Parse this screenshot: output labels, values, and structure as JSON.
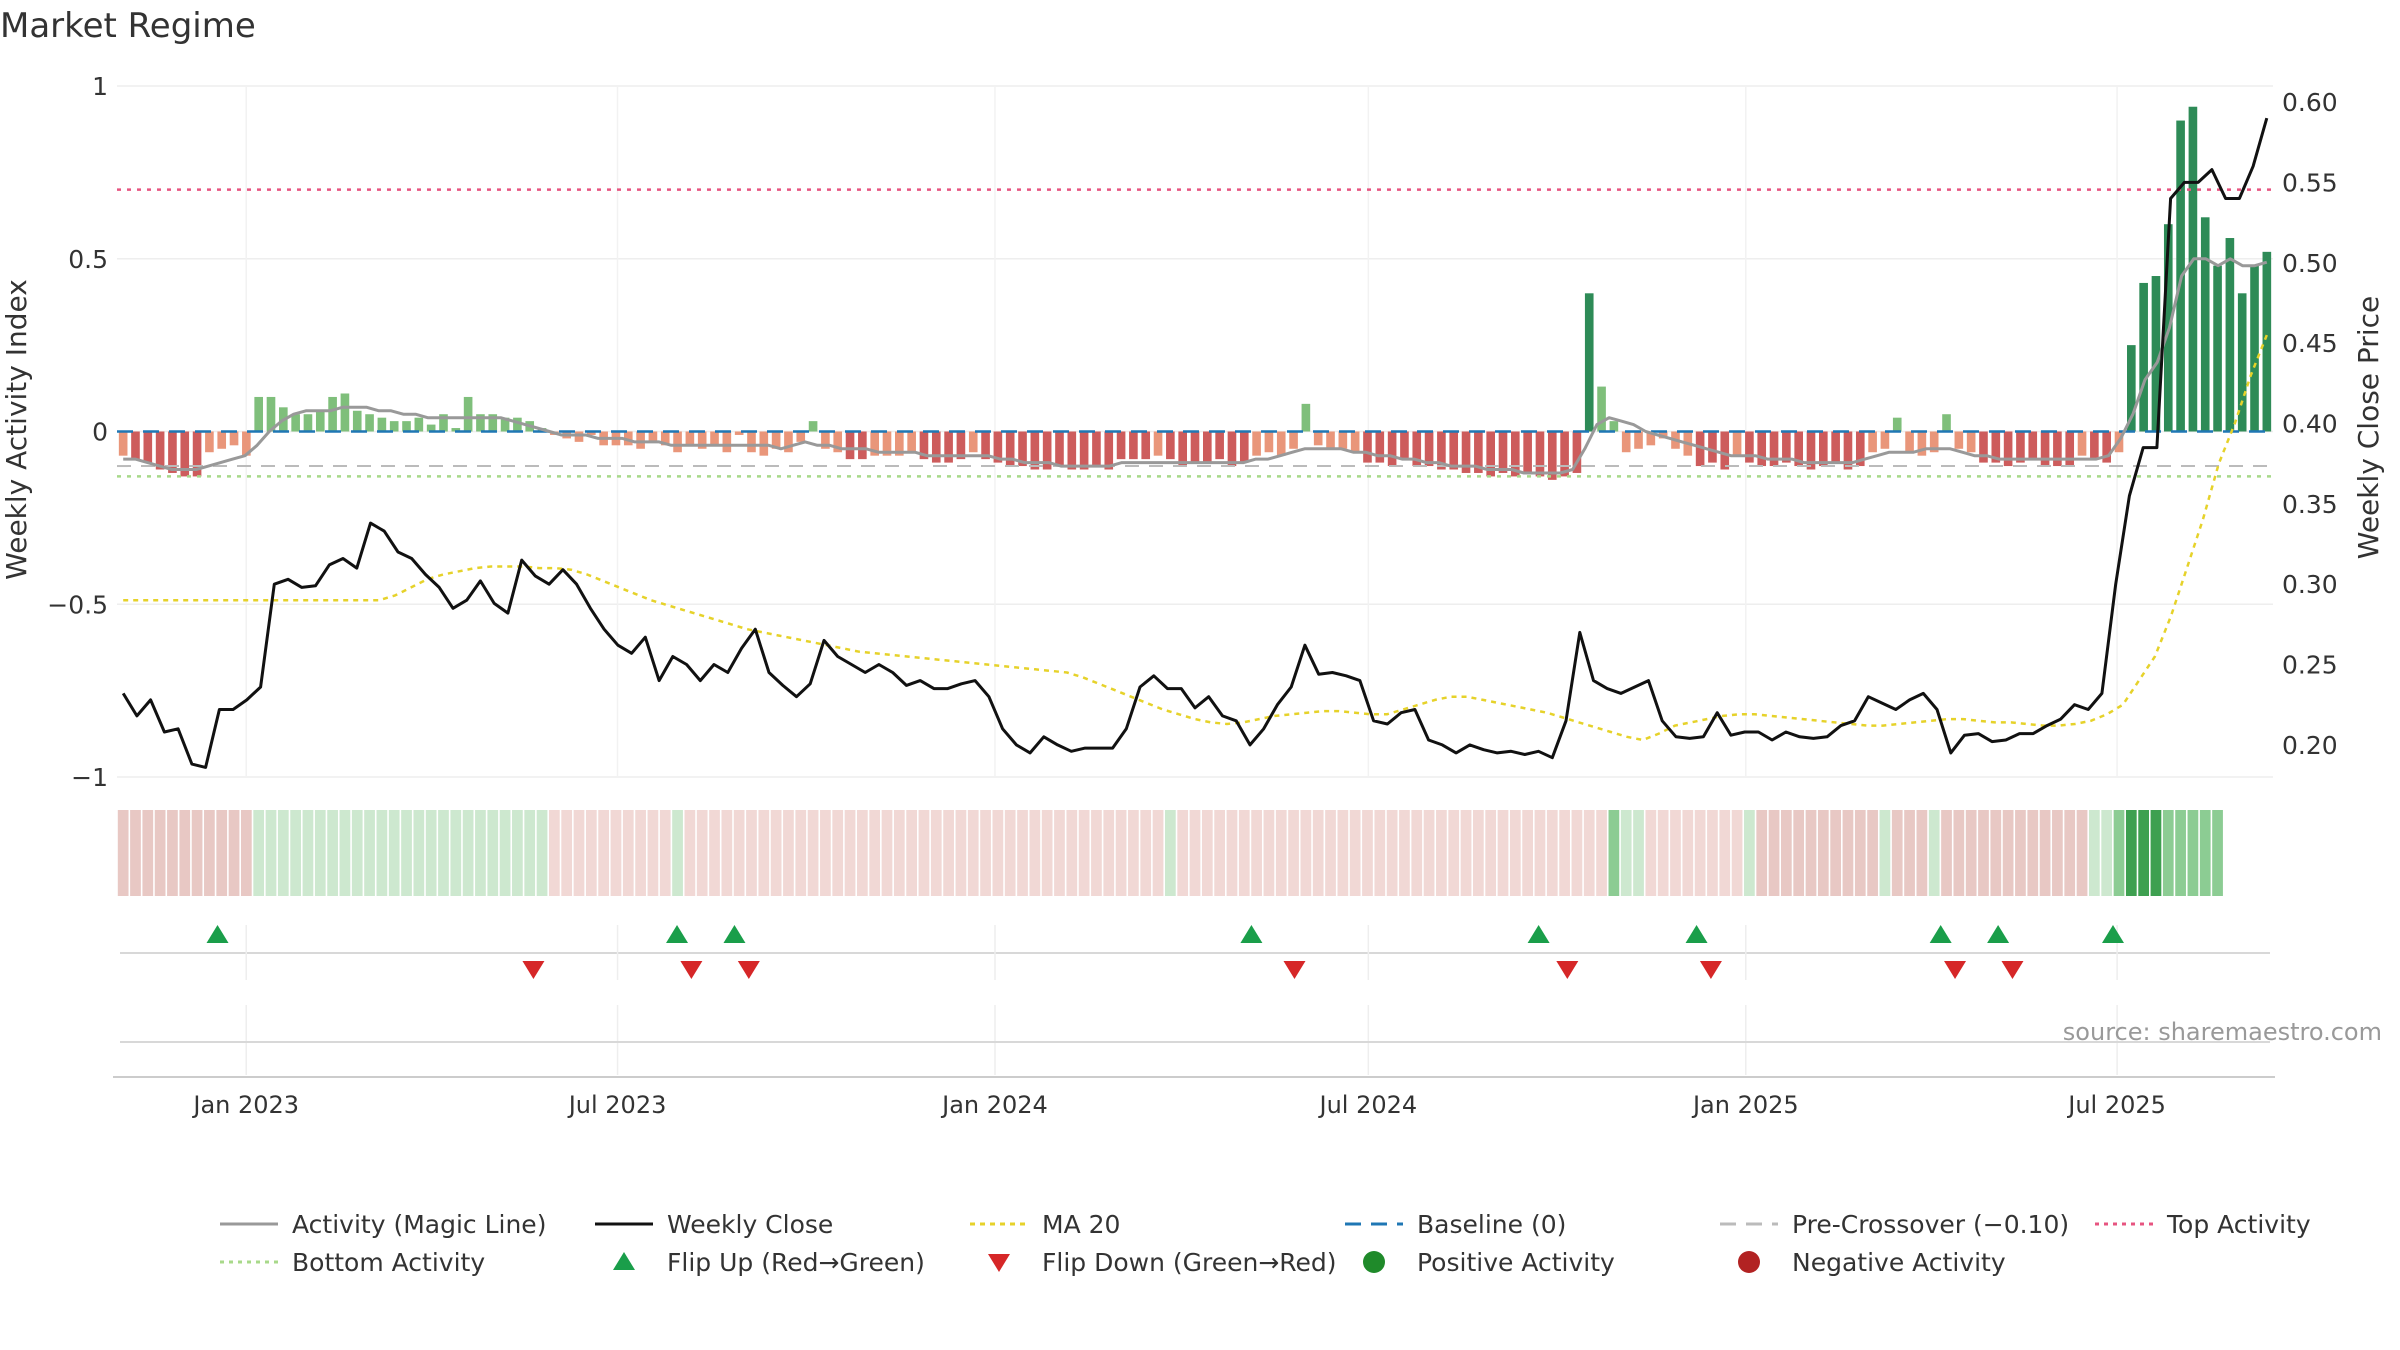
{
  "chart_data": {
    "type": "bar",
    "title": "Market Regime",
    "source": "source: sharemaestro.com",
    "y_left": {
      "label": "Weekly Activity Index",
      "lim": [
        -1,
        1
      ],
      "ticks": [
        1,
        0.5,
        0,
        -0.5,
        -1
      ],
      "tick_labels": [
        "1",
        "0.5",
        "0",
        "−0.5",
        "−1"
      ]
    },
    "y_right": {
      "label": "Weekly Close Price",
      "lim": [
        0.18,
        0.61
      ],
      "ticks": [
        0.6,
        0.55,
        0.5,
        0.45,
        0.4,
        0.35,
        0.3,
        0.25,
        0.2
      ],
      "tick_labels": [
        "0.60",
        "0.55",
        "0.50",
        "0.45",
        "0.40",
        "0.35",
        "0.30",
        "0.25",
        "0.20"
      ]
    },
    "x_axis": {
      "start": "2022-10-30",
      "end": "2025-09-15",
      "ticks": [
        {
          "label": "Jan 2023",
          "date": "2023-01-01"
        },
        {
          "label": "Jul 2023",
          "date": "2023-07-01"
        },
        {
          "label": "Jan 2024",
          "date": "2024-01-01"
        },
        {
          "label": "Jul 2024",
          "date": "2024-07-01"
        },
        {
          "label": "Jan 2025",
          "date": "2025-01-01"
        },
        {
          "label": "Jul 2025",
          "date": "2025-07-01"
        }
      ]
    },
    "reference_lines": {
      "top_activity": 0.7,
      "bottom_activity": -0.13,
      "baseline": 0,
      "pre_crossover": -0.1
    },
    "activity_bars": [
      -0.07,
      -0.08,
      -0.09,
      -0.11,
      -0.12,
      -0.13,
      -0.13,
      -0.06,
      -0.05,
      -0.04,
      -0.07,
      0.1,
      0.1,
      0.07,
      0.05,
      0.05,
      0.06,
      0.1,
      0.11,
      0.06,
      0.05,
      0.04,
      0.03,
      0.03,
      0.04,
      0.02,
      0.05,
      0.01,
      0.1,
      0.05,
      0.05,
      0.04,
      0.04,
      0.03,
      0.01,
      -0.01,
      -0.02,
      -0.03,
      -0.01,
      -0.04,
      -0.04,
      -0.04,
      -0.05,
      -0.03,
      -0.04,
      -0.06,
      -0.04,
      -0.05,
      -0.04,
      -0.06,
      -0.01,
      -0.06,
      -0.07,
      -0.05,
      -0.06,
      -0.03,
      0.03,
      -0.05,
      -0.06,
      -0.08,
      -0.08,
      -0.07,
      -0.07,
      -0.07,
      -0.06,
      -0.08,
      -0.09,
      -0.09,
      -0.08,
      -0.06,
      -0.08,
      -0.09,
      -0.1,
      -0.1,
      -0.11,
      -0.11,
      -0.1,
      -0.11,
      -0.11,
      -0.1,
      -0.11,
      -0.08,
      -0.08,
      -0.08,
      -0.07,
      -0.08,
      -0.1,
      -0.09,
      -0.09,
      -0.08,
      -0.1,
      -0.09,
      -0.07,
      -0.06,
      -0.07,
      -0.05,
      0.08,
      -0.04,
      -0.05,
      -0.05,
      -0.06,
      -0.09,
      -0.09,
      -0.1,
      -0.08,
      -0.1,
      -0.1,
      -0.11,
      -0.11,
      -0.12,
      -0.12,
      -0.13,
      -0.12,
      -0.13,
      -0.12,
      -0.13,
      -0.14,
      -0.13,
      -0.12,
      0.4,
      0.13,
      0.03,
      -0.06,
      -0.05,
      -0.04,
      -0.02,
      -0.05,
      -0.07,
      -0.1,
      -0.09,
      -0.11,
      -0.07,
      -0.09,
      -0.1,
      -0.1,
      -0.09,
      -0.1,
      -0.11,
      -0.1,
      -0.09,
      -0.11,
      -0.1,
      -0.06,
      -0.05,
      0.04,
      -0.06,
      -0.07,
      -0.06,
      0.05,
      -0.05,
      -0.06,
      -0.09,
      -0.09,
      -0.1,
      -0.09,
      -0.08,
      -0.1,
      -0.1,
      -0.1,
      -0.07,
      -0.08,
      -0.09,
      -0.06,
      0.25,
      0.43,
      0.45,
      0.6,
      0.9,
      0.94,
      0.62,
      0.48,
      0.56,
      0.4,
      0.48,
      0.52
    ],
    "activity_magic_line": [
      -0.08,
      -0.08,
      -0.09,
      -0.1,
      -0.11,
      -0.11,
      -0.11,
      -0.1,
      -0.09,
      -0.08,
      -0.07,
      -0.04,
      0.0,
      0.03,
      0.05,
      0.06,
      0.06,
      0.06,
      0.07,
      0.07,
      0.07,
      0.06,
      0.06,
      0.05,
      0.05,
      0.04,
      0.04,
      0.04,
      0.04,
      0.04,
      0.04,
      0.04,
      0.03,
      0.02,
      0.01,
      0.0,
      -0.01,
      -0.01,
      -0.01,
      -0.02,
      -0.02,
      -0.02,
      -0.03,
      -0.03,
      -0.03,
      -0.04,
      -0.04,
      -0.04,
      -0.04,
      -0.04,
      -0.04,
      -0.04,
      -0.04,
      -0.04,
      -0.05,
      -0.04,
      -0.03,
      -0.04,
      -0.04,
      -0.05,
      -0.05,
      -0.05,
      -0.06,
      -0.06,
      -0.06,
      -0.06,
      -0.07,
      -0.07,
      -0.07,
      -0.07,
      -0.07,
      -0.07,
      -0.08,
      -0.08,
      -0.09,
      -0.09,
      -0.09,
      -0.1,
      -0.1,
      -0.1,
      -0.1,
      -0.1,
      -0.09,
      -0.09,
      -0.09,
      -0.09,
      -0.09,
      -0.09,
      -0.09,
      -0.09,
      -0.09,
      -0.09,
      -0.09,
      -0.08,
      -0.08,
      -0.07,
      -0.06,
      -0.05,
      -0.05,
      -0.05,
      -0.05,
      -0.06,
      -0.06,
      -0.07,
      -0.07,
      -0.08,
      -0.08,
      -0.09,
      -0.09,
      -0.1,
      -0.1,
      -0.1,
      -0.11,
      -0.11,
      -0.11,
      -0.12,
      -0.12,
      -0.12,
      -0.12,
      -0.11,
      -0.05,
      0.02,
      0.04,
      0.03,
      0.02,
      0.0,
      -0.01,
      -0.02,
      -0.03,
      -0.04,
      -0.05,
      -0.06,
      -0.07,
      -0.07,
      -0.07,
      -0.08,
      -0.08,
      -0.08,
      -0.09,
      -0.09,
      -0.09,
      -0.09,
      -0.09,
      -0.08,
      -0.07,
      -0.06,
      -0.06,
      -0.06,
      -0.05,
      -0.05,
      -0.05,
      -0.06,
      -0.07,
      -0.07,
      -0.08,
      -0.08,
      -0.08,
      -0.08,
      -0.08,
      -0.08,
      -0.08,
      -0.08,
      -0.08,
      -0.07,
      -0.02,
      0.05,
      0.15,
      0.2,
      0.3,
      0.45,
      0.5,
      0.5,
      0.48,
      0.5,
      0.48,
      0.48,
      0.49
    ],
    "weekly_close": [
      0.232,
      0.218,
      0.228,
      0.208,
      0.21,
      0.188,
      0.186,
      0.222,
      0.222,
      0.228,
      0.236,
      0.3,
      0.303,
      0.298,
      0.299,
      0.312,
      0.316,
      0.31,
      0.338,
      0.333,
      0.32,
      0.316,
      0.306,
      0.298,
      0.285,
      0.29,
      0.302,
      0.288,
      0.282,
      0.315,
      0.305,
      0.3,
      0.309,
      0.3,
      0.285,
      0.272,
      0.262,
      0.257,
      0.267,
      0.24,
      0.255,
      0.25,
      0.24,
      0.25,
      0.245,
      0.26,
      0.272,
      0.245,
      0.237,
      0.23,
      0.238,
      0.265,
      0.255,
      0.25,
      0.245,
      0.25,
      0.245,
      0.237,
      0.24,
      0.235,
      0.235,
      0.238,
      0.24,
      0.23,
      0.21,
      0.2,
      0.195,
      0.205,
      0.2,
      0.196,
      0.198,
      0.198,
      0.198,
      0.21,
      0.236,
      0.243,
      0.235,
      0.235,
      0.223,
      0.23,
      0.218,
      0.215,
      0.2,
      0.21,
      0.225,
      0.236,
      0.262,
      0.244,
      0.245,
      0.243,
      0.24,
      0.215,
      0.213,
      0.22,
      0.222,
      0.203,
      0.2,
      0.195,
      0.2,
      0.197,
      0.195,
      0.196,
      0.194,
      0.196,
      0.192,
      0.215,
      0.27,
      0.24,
      0.235,
      0.232,
      0.236,
      0.24,
      0.215,
      0.205,
      0.204,
      0.205,
      0.22,
      0.206,
      0.208,
      0.208,
      0.203,
      0.208,
      0.205,
      0.204,
      0.205,
      0.212,
      0.215,
      0.23,
      0.226,
      0.222,
      0.228,
      0.232,
      0.222,
      0.195,
      0.206,
      0.207,
      0.202,
      0.203,
      0.207,
      0.207,
      0.212,
      0.216,
      0.225,
      0.222,
      0.232,
      0.3,
      0.355,
      0.385,
      0.385,
      0.54,
      0.55,
      0.55,
      0.558,
      0.54,
      0.54,
      0.56,
      0.59
    ],
    "ma20": [
      0.29,
      0.29,
      0.29,
      0.29,
      0.29,
      0.29,
      0.29,
      0.29,
      0.29,
      0.29,
      0.29,
      0.29,
      0.29,
      0.29,
      0.29,
      0.29,
      0.29,
      0.293,
      0.298,
      0.303,
      0.306,
      0.308,
      0.31,
      0.311,
      0.311,
      0.311,
      0.31,
      0.31,
      0.309,
      0.306,
      0.302,
      0.298,
      0.294,
      0.29,
      0.287,
      0.284,
      0.281,
      0.278,
      0.275,
      0.272,
      0.27,
      0.268,
      0.266,
      0.264,
      0.262,
      0.26,
      0.258,
      0.257,
      0.256,
      0.255,
      0.254,
      0.253,
      0.252,
      0.251,
      0.25,
      0.249,
      0.248,
      0.247,
      0.246,
      0.245,
      0.242,
      0.238,
      0.234,
      0.23,
      0.226,
      0.222,
      0.219,
      0.216,
      0.214,
      0.213,
      0.214,
      0.216,
      0.218,
      0.219,
      0.22,
      0.221,
      0.221,
      0.22,
      0.219,
      0.219,
      0.222,
      0.225,
      0.228,
      0.23,
      0.23,
      0.228,
      0.226,
      0.224,
      0.222,
      0.22,
      0.217,
      0.214,
      0.211,
      0.208,
      0.205,
      0.203,
      0.207,
      0.212,
      0.214,
      0.216,
      0.218,
      0.219,
      0.219,
      0.218,
      0.217,
      0.216,
      0.215,
      0.214,
      0.213,
      0.212,
      0.212,
      0.213,
      0.214,
      0.215,
      0.216,
      0.216,
      0.215,
      0.214,
      0.214,
      0.213,
      0.212,
      0.212,
      0.213,
      0.215,
      0.219,
      0.225,
      0.24,
      0.255,
      0.28,
      0.31,
      0.34,
      0.375,
      0.4,
      0.43,
      0.455
    ],
    "regime_strip": [
      "n",
      "n",
      "n",
      "n",
      "n",
      "n",
      "n",
      "n",
      "n",
      "n",
      "n",
      "g",
      "g",
      "g",
      "g",
      "g",
      "g",
      "g",
      "g",
      "g",
      "g",
      "g",
      "g",
      "g",
      "g",
      "g",
      "g",
      "g",
      "g",
      "g",
      "g",
      "g",
      "g",
      "g",
      "g",
      "r",
      "r",
      "r",
      "r",
      "r",
      "r",
      "r",
      "r",
      "r",
      "r",
      "g",
      "r",
      "r",
      "r",
      "r",
      "r",
      "r",
      "r",
      "r",
      "r",
      "r",
      "r",
      "r",
      "r",
      "r",
      "r",
      "r",
      "r",
      "r",
      "r",
      "r",
      "r",
      "r",
      "r",
      "r",
      "r",
      "r",
      "r",
      "r",
      "r",
      "r",
      "r",
      "r",
      "r",
      "r",
      "r",
      "r",
      "r",
      "r",
      "r",
      "g",
      "r",
      "r",
      "r",
      "r",
      "r",
      "r",
      "r",
      "r",
      "r",
      "r",
      "r",
      "r",
      "r",
      "r",
      "r",
      "r",
      "r",
      "r",
      "r",
      "r",
      "r",
      "r",
      "r",
      "r",
      "r",
      "r",
      "r",
      "r",
      "r",
      "r",
      "r",
      "r",
      "r",
      "r",
      "r",
      "G",
      "g",
      "g",
      "r",
      "r",
      "r",
      "r",
      "r",
      "r",
      "r",
      "r",
      "g",
      "n",
      "n",
      "n",
      "n",
      "n",
      "n",
      "n",
      "n",
      "n",
      "n",
      "g",
      "n",
      "n",
      "n",
      "g",
      "n",
      "n",
      "n",
      "n",
      "n",
      "n",
      "n",
      "n",
      "n",
      "n",
      "n",
      "n",
      "g",
      "g",
      "G",
      "H",
      "H",
      "H",
      "G",
      "G",
      "G",
      "G",
      "G"
    ],
    "flip_up_dates": [
      "2022-12-18",
      "2023-07-30",
      "2023-08-27",
      "2024-05-05",
      "2024-09-22",
      "2024-12-08",
      "2025-04-06",
      "2025-05-04",
      "2025-06-29"
    ],
    "flip_down_dates": [
      "2023-05-21",
      "2023-08-06",
      "2023-09-03",
      "2024-05-26",
      "2024-10-06",
      "2024-12-15",
      "2025-04-13",
      "2025-05-11"
    ],
    "colors": {
      "bar_up_strong": "#2e8b57",
      "bar_up_light": "#7fbf7b",
      "bar_down_strong": "#cd5c5c",
      "bar_down_light": "#e9967a",
      "close_line": "#111111",
      "magic_line": "#999999",
      "ma20": "#e6d22a",
      "baseline": "#1f77b4",
      "pre_crossover": "#bbbbbb",
      "top_activity": "#e75480",
      "bottom_activity": "#a8d98a",
      "flip_up": "#1a9e4a",
      "flip_down": "#d62728",
      "positive_dot": "#1f8a2a",
      "negative_dot": "#b22222"
    },
    "legend": [
      {
        "label": "Activity (Magic Line)",
        "icon": "gray-line"
      },
      {
        "label": "Weekly Close",
        "icon": "black-line"
      },
      {
        "label": "MA 20",
        "icon": "yellow-dotted-line"
      },
      {
        "label": "Baseline (0)",
        "icon": "blue-dashed-line"
      },
      {
        "label": "Pre-Crossover (−0.10)",
        "icon": "gray-dashed-line"
      },
      {
        "label": "Top Activity",
        "icon": "pink-dotted-line"
      },
      {
        "label": "Bottom Activity",
        "icon": "green-dotted-line"
      },
      {
        "label": "Flip Up (Red→Green)",
        "icon": "triangle-up"
      },
      {
        "label": "Flip Down (Green→Red)",
        "icon": "triangle-down"
      },
      {
        "label": "Positive Activity",
        "icon": "green-dot"
      },
      {
        "label": "Negative Activity",
        "icon": "red-dot"
      }
    ]
  }
}
